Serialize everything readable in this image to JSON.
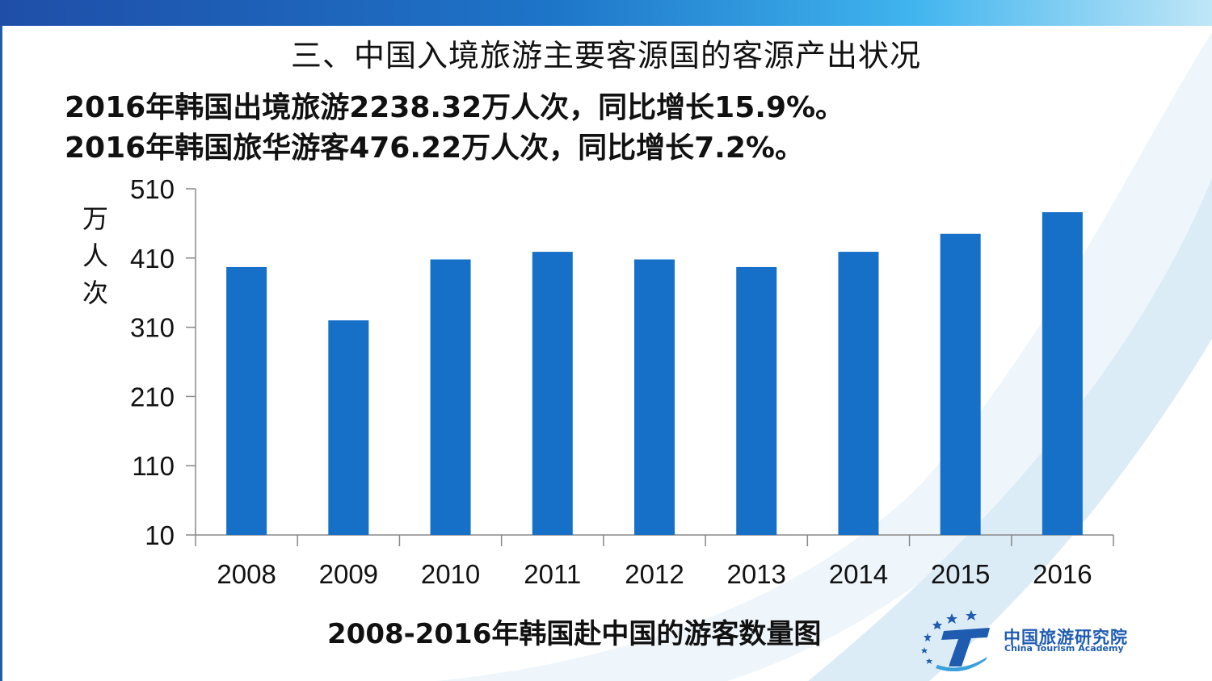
{
  "title": "三、中国入境旅游主要客源国的客源产出状况",
  "lines": [
    "2016年韩国出境旅游2238.32万人次，同比增长15.9%。",
    "2016年韩国旅华游客476.22万人次，同比增长7.2%。"
  ],
  "chart_data": {
    "type": "bar",
    "title": "2008-2016年韩国赴中国的游客数量图",
    "ylabel": "万人次",
    "xlabel": "",
    "categories": [
      "2008",
      "2009",
      "2010",
      "2011",
      "2012",
      "2013",
      "2014",
      "2015",
      "2016"
    ],
    "values": [
      397,
      320,
      408,
      419,
      408,
      397,
      419,
      445,
      476.22
    ],
    "ylim": [
      10,
      510
    ],
    "yticks": [
      10,
      110,
      210,
      310,
      410,
      510
    ],
    "color": "#1670c8"
  },
  "logo": {
    "name_cn": "中国旅游研究院",
    "name_en": "China Tourism Academy",
    "color": "#1f5cb0"
  }
}
